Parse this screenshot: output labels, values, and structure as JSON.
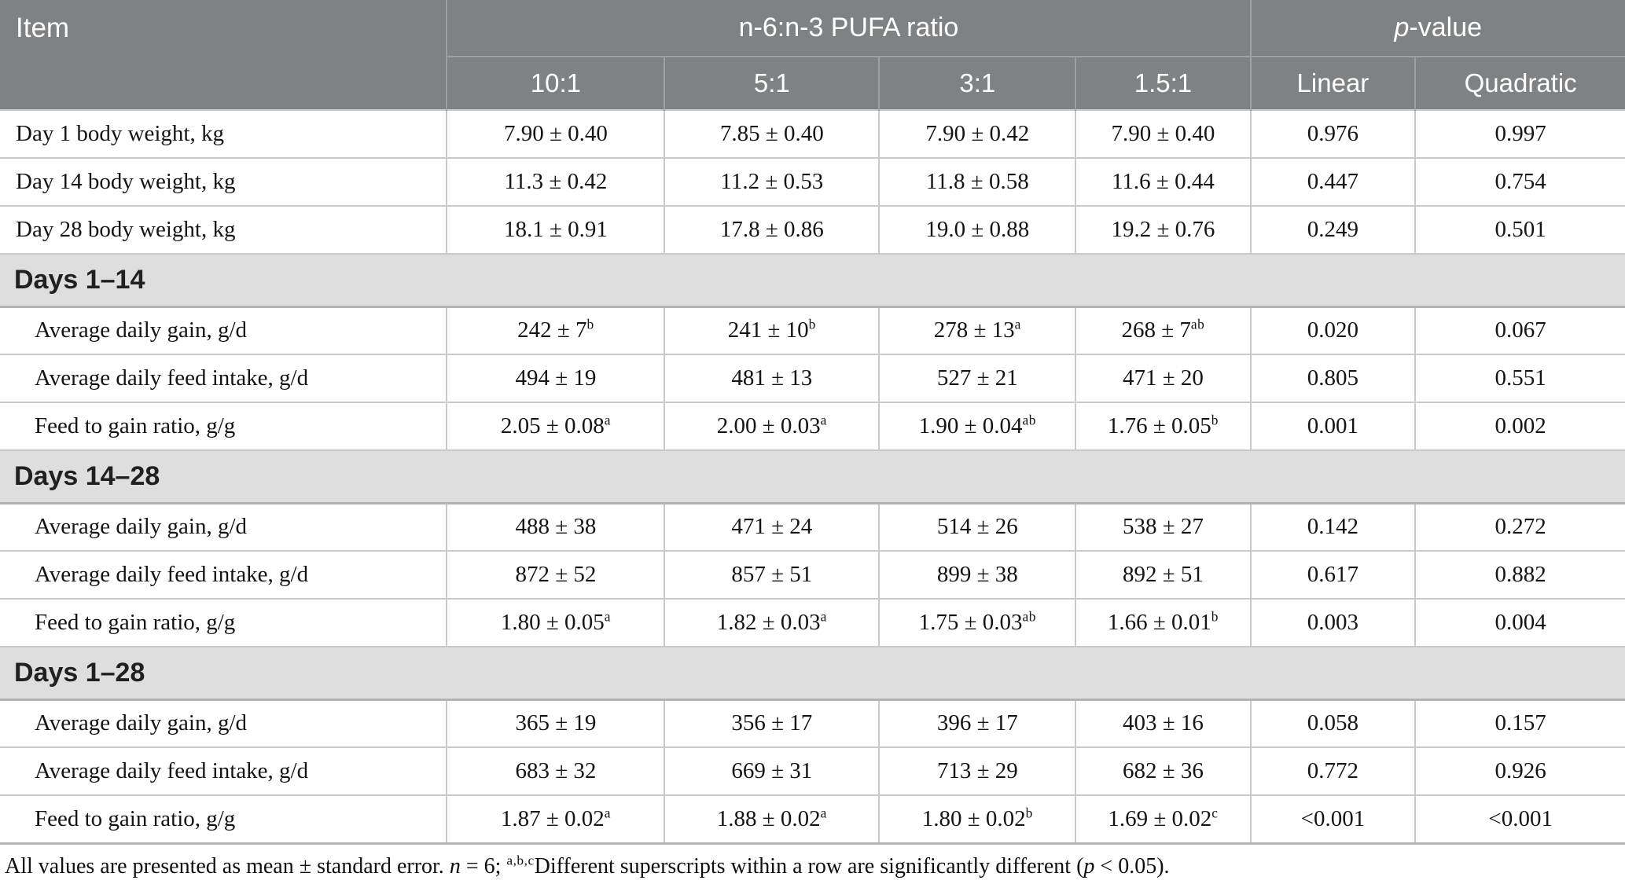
{
  "colors": {
    "header_bg": "#7f8182",
    "header_line": "#9ea0a1",
    "header_text": "#ffffff",
    "section_bg": "#dedede",
    "section_line": "#b2b2b2",
    "row_line": "#c9c9c9",
    "body_text": "#141414"
  },
  "table": {
    "header": {
      "item_label": "Item",
      "group_pufa_label": "n-6:n-3 PUFA ratio",
      "group_pvalue_italic": "p",
      "group_pvalue_rest": "-value",
      "subheaders": [
        "10:1",
        "5:1",
        "3:1",
        "1.5:1",
        "Linear",
        "Quadratic"
      ]
    },
    "rows": [
      {
        "type": "data",
        "indent": false,
        "label": "Day 1 body weight, kg",
        "cells": [
          {
            "t": "7.90 ± 0.40"
          },
          {
            "t": "7.85 ± 0.40"
          },
          {
            "t": "7.90 ± 0.42"
          },
          {
            "t": "7.90 ± 0.40"
          },
          {
            "t": "0.976"
          },
          {
            "t": "0.997"
          }
        ]
      },
      {
        "type": "data",
        "indent": false,
        "label": "Day 14 body weight, kg",
        "cells": [
          {
            "t": "11.3 ± 0.42"
          },
          {
            "t": "11.2 ± 0.53"
          },
          {
            "t": "11.8 ± 0.58"
          },
          {
            "t": "11.6 ± 0.44"
          },
          {
            "t": "0.447"
          },
          {
            "t": "0.754"
          }
        ]
      },
      {
        "type": "data",
        "indent": false,
        "label": "Day 28 body weight, kg",
        "cells": [
          {
            "t": "18.1 ± 0.91"
          },
          {
            "t": "17.8 ± 0.86"
          },
          {
            "t": "19.0 ± 0.88"
          },
          {
            "t": "19.2 ± 0.76"
          },
          {
            "t": "0.249"
          },
          {
            "t": "0.501"
          }
        ]
      },
      {
        "type": "section",
        "label": "Days 1–14"
      },
      {
        "type": "data",
        "indent": true,
        "label": "Average daily gain, g/d",
        "cells": [
          {
            "t": "242 ± 7",
            "s": "b"
          },
          {
            "t": "241 ± 10",
            "s": "b"
          },
          {
            "t": "278 ± 13",
            "s": "a"
          },
          {
            "t": "268 ± 7",
            "s": "ab"
          },
          {
            "t": "0.020"
          },
          {
            "t": "0.067"
          }
        ]
      },
      {
        "type": "data",
        "indent": true,
        "label": "Average daily feed intake, g/d",
        "cells": [
          {
            "t": "494 ± 19"
          },
          {
            "t": "481 ± 13"
          },
          {
            "t": "527 ± 21"
          },
          {
            "t": "471 ± 20"
          },
          {
            "t": "0.805"
          },
          {
            "t": "0.551"
          }
        ]
      },
      {
        "type": "data",
        "indent": true,
        "label": "Feed to gain ratio, g/g",
        "cells": [
          {
            "t": "2.05 ± 0.08",
            "s": "a"
          },
          {
            "t": "2.00 ± 0.03",
            "s": "a"
          },
          {
            "t": "1.90 ± 0.04",
            "s": "ab"
          },
          {
            "t": "1.76 ± 0.05",
            "s": "b"
          },
          {
            "t": "0.001"
          },
          {
            "t": "0.002"
          }
        ]
      },
      {
        "type": "section",
        "label": "Days 14–28"
      },
      {
        "type": "data",
        "indent": true,
        "label": "Average daily gain, g/d",
        "cells": [
          {
            "t": "488 ± 38"
          },
          {
            "t": "471 ± 24"
          },
          {
            "t": "514 ± 26"
          },
          {
            "t": "538 ± 27"
          },
          {
            "t": "0.142"
          },
          {
            "t": "0.272"
          }
        ]
      },
      {
        "type": "data",
        "indent": true,
        "label": "Average daily feed intake, g/d",
        "cells": [
          {
            "t": "872 ± 52"
          },
          {
            "t": "857 ± 51"
          },
          {
            "t": "899 ± 38"
          },
          {
            "t": "892 ± 51"
          },
          {
            "t": "0.617"
          },
          {
            "t": "0.882"
          }
        ]
      },
      {
        "type": "data",
        "indent": true,
        "label": "Feed to gain ratio, g/g",
        "cells": [
          {
            "t": "1.80 ± 0.05",
            "s": "a"
          },
          {
            "t": "1.82 ± 0.03",
            "s": "a"
          },
          {
            "t": "1.75 ± 0.03",
            "s": "ab"
          },
          {
            "t": "1.66 ± 0.01",
            "s": "b"
          },
          {
            "t": "0.003"
          },
          {
            "t": "0.004"
          }
        ]
      },
      {
        "type": "section",
        "label": "Days 1–28"
      },
      {
        "type": "data",
        "indent": true,
        "label": "Average daily gain, g/d",
        "cells": [
          {
            "t": "365 ± 19"
          },
          {
            "t": "356 ± 17"
          },
          {
            "t": "396 ± 17"
          },
          {
            "t": "403 ± 16"
          },
          {
            "t": "0.058"
          },
          {
            "t": "0.157"
          }
        ]
      },
      {
        "type": "data",
        "indent": true,
        "label": "Average daily feed intake, g/d",
        "cells": [
          {
            "t": "683 ± 32"
          },
          {
            "t": "669 ± 31"
          },
          {
            "t": "713 ± 29"
          },
          {
            "t": "682 ± 36"
          },
          {
            "t": "0.772"
          },
          {
            "t": "0.926"
          }
        ]
      },
      {
        "type": "data",
        "indent": true,
        "label": "Feed to gain ratio, g/g",
        "cells": [
          {
            "t": "1.87 ± 0.02",
            "s": "a"
          },
          {
            "t": "1.88 ± 0.02",
            "s": "a"
          },
          {
            "t": "1.80 ± 0.02",
            "s": "b"
          },
          {
            "t": "1.69 ± 0.02",
            "s": "c"
          },
          {
            "t": "<0.001"
          },
          {
            "t": "<0.001"
          }
        ]
      }
    ]
  },
  "footnote": {
    "part1": "All values are presented as mean ± standard error. ",
    "n_italic": "n",
    "part2": " = 6; ",
    "sup": "a,b,c",
    "part3": "Different superscripts within a row are significantly different (",
    "p_italic": "p",
    "part4": " < 0.05)."
  }
}
